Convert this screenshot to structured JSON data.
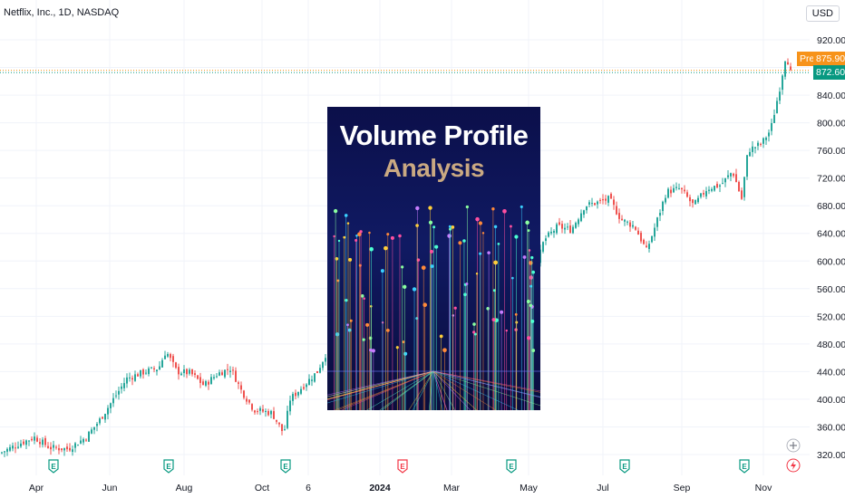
{
  "symbol": "Netflix, Inc., 1D, NASDAQ",
  "currency": "USD",
  "pre_label": "Pre",
  "pre_price": "875.90",
  "last_price": "872.60",
  "colors": {
    "up": "#26a69a",
    "down": "#ef5350",
    "pre": "#f7931a",
    "last": "#089981",
    "grid": "#f0f3fa"
  },
  "overlay": {
    "title_line1": "Volume Profile",
    "title_line2": "Analysis"
  },
  "earnings_icon": "E",
  "chart_data": {
    "type": "candlestick",
    "title": "",
    "ylim": [
      300,
      930
    ],
    "y_ticks": [
      320,
      360,
      400,
      440,
      480,
      520,
      560,
      600,
      640,
      680,
      720,
      760,
      800,
      840,
      880,
      920
    ],
    "y_tick_labels": [
      "320.00",
      "360.00",
      "400.00",
      "440.00",
      "480.00",
      "520.00",
      "560.00",
      "600.00",
      "640.00",
      "680.00",
      "720.00",
      "760.00",
      "800.00",
      "840.00",
      "880.00",
      "920.00"
    ],
    "x_tick_labels": [
      "Apr",
      "Jun",
      "Aug",
      "Oct",
      "6",
      "2024",
      "Mar",
      "May",
      "Jul",
      "Sep",
      "Nov"
    ],
    "x_tick_bold": "2024",
    "close_series": [
      {
        "x": 0,
        "c": 322
      },
      {
        "x": 20,
        "c": 335
      },
      {
        "x": 38,
        "c": 345
      },
      {
        "x": 55,
        "c": 330
      },
      {
        "x": 75,
        "c": 328
      },
      {
        "x": 95,
        "c": 345
      },
      {
        "x": 110,
        "c": 370
      },
      {
        "x": 125,
        "c": 400
      },
      {
        "x": 140,
        "c": 430
      },
      {
        "x": 160,
        "c": 440
      },
      {
        "x": 175,
        "c": 445
      },
      {
        "x": 183,
        "c": 470
      },
      {
        "x": 195,
        "c": 440
      },
      {
        "x": 210,
        "c": 438
      },
      {
        "x": 225,
        "c": 420
      },
      {
        "x": 240,
        "c": 437
      },
      {
        "x": 255,
        "c": 445
      },
      {
        "x": 265,
        "c": 415
      },
      {
        "x": 280,
        "c": 385
      },
      {
        "x": 300,
        "c": 380
      },
      {
        "x": 313,
        "c": 350
      },
      {
        "x": 320,
        "c": 400
      },
      {
        "x": 335,
        "c": 420
      },
      {
        "x": 350,
        "c": 440
      },
      {
        "x": 361,
        "c": 470
      },
      {
        "x": 380,
        "c": 485
      },
      {
        "x": 400,
        "c": 480
      },
      {
        "x": 420,
        "c": 475
      },
      {
        "x": 440,
        "c": 480
      },
      {
        "x": 460,
        "c": 540
      },
      {
        "x": 480,
        "c": 565
      },
      {
        "x": 500,
        "c": 585
      },
      {
        "x": 520,
        "c": 600
      },
      {
        "x": 540,
        "c": 630
      },
      {
        "x": 560,
        "c": 610
      },
      {
        "x": 575,
        "c": 550
      },
      {
        "x": 590,
        "c": 585
      },
      {
        "x": 600,
        "c": 630
      },
      {
        "x": 615,
        "c": 650
      },
      {
        "x": 630,
        "c": 645
      },
      {
        "x": 645,
        "c": 680
      },
      {
        "x": 660,
        "c": 685
      },
      {
        "x": 672,
        "c": 690
      },
      {
        "x": 685,
        "c": 660
      },
      {
        "x": 700,
        "c": 650
      },
      {
        "x": 713,
        "c": 615
      },
      {
        "x": 720,
        "c": 640
      },
      {
        "x": 735,
        "c": 700
      },
      {
        "x": 750,
        "c": 705
      },
      {
        "x": 765,
        "c": 680
      },
      {
        "x": 780,
        "c": 705
      },
      {
        "x": 795,
        "c": 710
      },
      {
        "x": 808,
        "c": 730
      },
      {
        "x": 818,
        "c": 690
      },
      {
        "x": 825,
        "c": 760
      },
      {
        "x": 840,
        "c": 770
      },
      {
        "x": 850,
        "c": 790
      },
      {
        "x": 860,
        "c": 850
      },
      {
        "x": 867,
        "c": 900
      },
      {
        "x": 872,
        "c": 872.6
      }
    ],
    "last_price": 872.6,
    "pre_market_price": 875.9,
    "earnings_markers": [
      "Apr",
      "Jun",
      "Aug",
      "Oct",
      "2024",
      "Mar",
      "May",
      "Jul",
      "Sep",
      "Nov"
    ]
  }
}
